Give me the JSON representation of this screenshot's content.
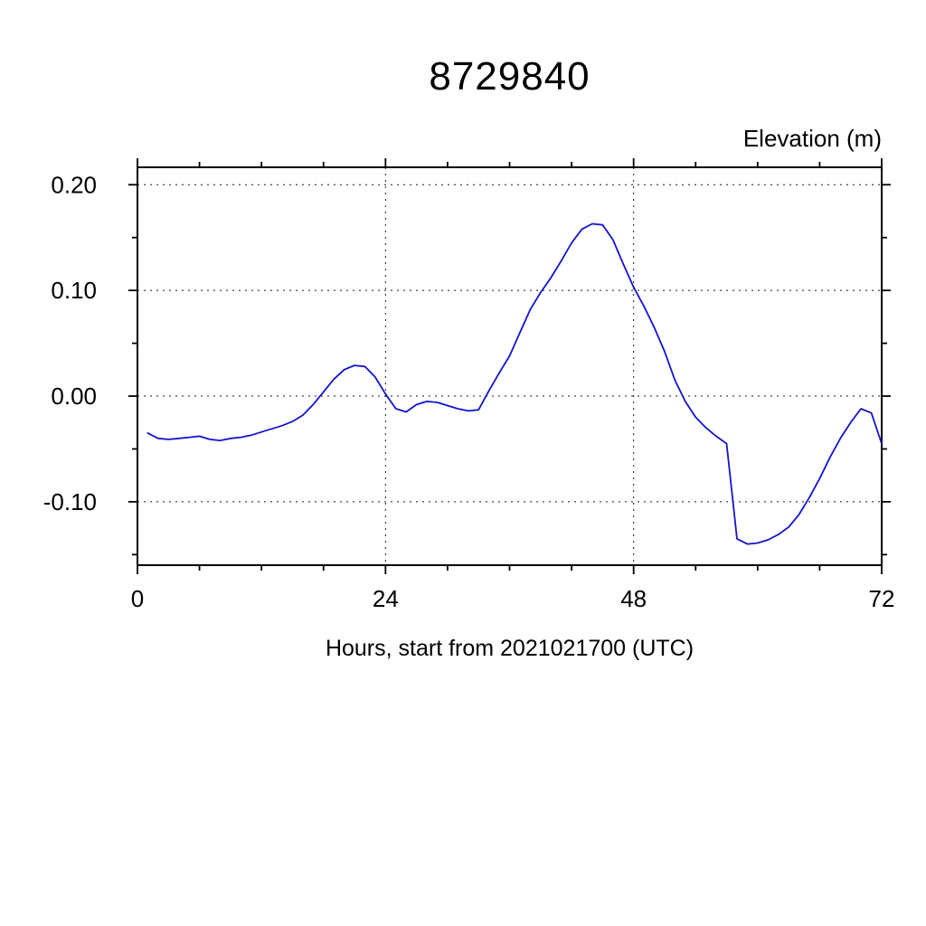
{
  "chart": {
    "title": "8729840",
    "ylabel_top_right": "Elevation (m)",
    "xlabel": "Hours, start from 2021021700 (UTC)"
  },
  "chart_data": {
    "type": "line",
    "title": "8729840",
    "xlabel": "Hours, start from 2021021700 (UTC)",
    "ylabel": "Elevation (m)",
    "xlim": [
      0,
      72
    ],
    "ylim": [
      -0.16,
      0.2165
    ],
    "xticks": [
      0,
      24,
      48,
      72
    ],
    "xtick_labels": [
      "0",
      "24",
      "48",
      "72"
    ],
    "yticks": [
      0.2,
      0.1,
      0.0,
      -0.1
    ],
    "ytick_labels": [
      "0.20",
      "0.10",
      "0.00",
      "-0.10"
    ],
    "x_minor_ticks": [
      6,
      12,
      18,
      30,
      36,
      42,
      54,
      60,
      66
    ],
    "y_minor_ticks": [
      0.15,
      0.05,
      -0.05,
      -0.15
    ],
    "xgrid": [
      24,
      48
    ],
    "ygrid": [
      0.2,
      0.1,
      0.0,
      -0.1
    ],
    "grid_style": "dashed",
    "legend": "none",
    "line_color": "#1414cc",
    "series": [
      {
        "name": "elevation",
        "x": [
          1,
          2,
          3,
          4,
          5,
          6,
          7,
          8,
          9,
          10,
          11,
          12,
          13,
          14,
          15,
          16,
          17,
          18,
          19,
          20,
          21,
          22,
          23,
          24,
          25,
          26,
          27,
          28,
          29,
          30,
          31,
          32,
          33,
          34,
          35,
          36,
          37,
          38,
          39,
          40,
          41,
          42,
          43,
          44,
          45,
          46,
          47,
          48,
          49,
          50,
          51,
          52,
          53,
          54,
          55,
          56,
          57,
          58,
          59,
          60,
          61,
          62,
          63,
          64,
          65,
          66,
          67,
          68,
          69,
          70,
          71,
          72
        ],
        "y": [
          -0.035,
          -0.04,
          -0.041,
          -0.04,
          -0.039,
          -0.038,
          -0.041,
          -0.042,
          -0.04,
          -0.039,
          -0.037,
          -0.034,
          -0.031,
          -0.028,
          -0.024,
          -0.018,
          -0.008,
          0.004,
          0.016,
          0.025,
          0.029,
          0.028,
          0.018,
          0.002,
          -0.012,
          -0.015,
          -0.008,
          -0.005,
          -0.006,
          -0.009,
          -0.012,
          -0.014,
          -0.013,
          0.005,
          0.022,
          0.038,
          0.06,
          0.082,
          0.098,
          0.112,
          0.128,
          0.145,
          0.158,
          0.163,
          0.162,
          0.148,
          0.125,
          0.103,
          0.085,
          0.065,
          0.042,
          0.015,
          -0.005,
          -0.02,
          -0.03,
          -0.038,
          -0.045,
          -0.135,
          -0.14,
          -0.139,
          -0.136,
          -0.131,
          -0.124,
          -0.112,
          -0.096,
          -0.078,
          -0.058,
          -0.04,
          -0.025,
          -0.012,
          -0.016,
          -0.045
        ]
      }
    ]
  }
}
